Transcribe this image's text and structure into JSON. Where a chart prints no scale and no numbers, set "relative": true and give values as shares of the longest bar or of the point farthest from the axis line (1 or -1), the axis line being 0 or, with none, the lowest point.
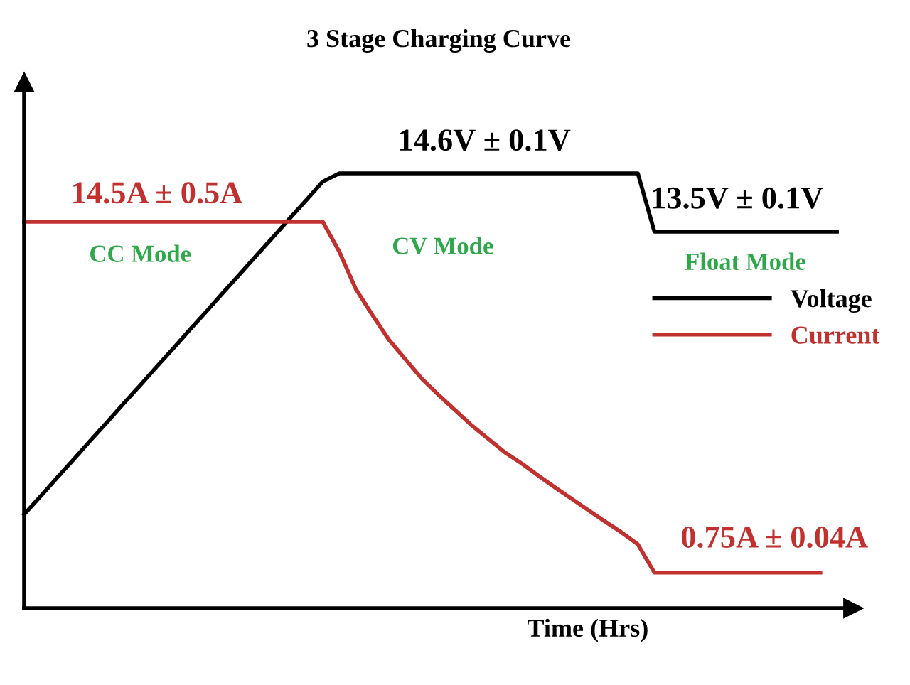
{
  "chart_data": {
    "type": "line",
    "title": "3 Stage Charging Curve",
    "xlabel": "Time (Hrs)",
    "relative": true,
    "legend": "right",
    "marker": "none",
    "line_style": "solid",
    "categories": [
      null,
      null,
      null,
      null,
      null,
      null,
      null,
      null,
      null,
      null,
      null,
      null,
      null,
      null,
      null,
      null,
      null,
      null,
      null,
      null,
      null,
      null,
      null,
      null,
      null,
      null,
      null,
      null,
      null,
      null,
      null,
      null,
      null,
      null,
      null,
      null,
      null,
      null,
      null,
      null,
      null,
      null,
      null,
      null,
      null,
      null,
      null,
      null,
      null,
      null
    ],
    "series": [
      {
        "name": "Voltage",
        "color": "#000000",
        "values": [
          0.216,
          0.258,
          0.301,
          0.343,
          0.386,
          0.428,
          0.471,
          0.513,
          0.556,
          0.598,
          0.641,
          0.683,
          0.726,
          0.768,
          0.811,
          0.853,
          0.896,
          0.938,
          0.981,
          1,
          1,
          1,
          1,
          1,
          1,
          1,
          1,
          1,
          1,
          1,
          1,
          1,
          1,
          1,
          1,
          1,
          1,
          1,
          0.866,
          0.866,
          0.866,
          0.866,
          0.866,
          0.866,
          0.866,
          0.866,
          0.866,
          0.866,
          0.866,
          0.866
        ]
      },
      {
        "name": "Current",
        "color": "#c0312f",
        "values": [
          0.889,
          0.889,
          0.889,
          0.889,
          0.889,
          0.889,
          0.889,
          0.889,
          0.889,
          0.889,
          0.889,
          0.889,
          0.889,
          0.889,
          0.889,
          0.889,
          0.889,
          0.889,
          0.889,
          0.82,
          0.734,
          0.674,
          0.617,
          0.572,
          0.527,
          0.49,
          0.455,
          0.42,
          0.389,
          0.358,
          0.333,
          0.305,
          0.278,
          0.252,
          0.226,
          0.2,
          0.175,
          0.147,
          0.082,
          0.082,
          0.082,
          0.082,
          0.082,
          0.082,
          0.082,
          0.082,
          0.082,
          0.082,
          0.082,
          null
        ]
      }
    ],
    "annotations": [
      "14.5A ± 0.5A",
      "CC Mode",
      "14.6V ± 0.1V",
      "CV Mode",
      "13.5V ± 0.1V",
      "Float Mode",
      "0.75A ± 0.04A"
    ]
  }
}
